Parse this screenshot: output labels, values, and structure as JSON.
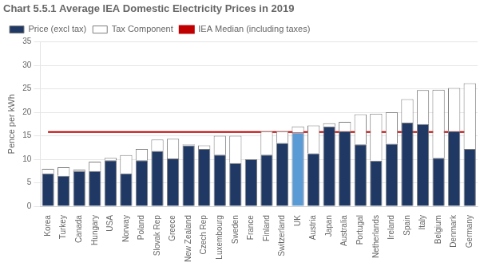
{
  "chart_data": {
    "type": "bar",
    "title": "Chart 5.5.1 Average IEA Domestic Electricity Prices in 2019",
    "ylabel": "Pence per kWh",
    "categories": [
      "Korea",
      "Turkey",
      "Canada",
      "Hungary",
      "USA",
      "Norway",
      "Poland",
      "Slovak Rep",
      "Greece",
      "New Zealand",
      "Czech Rep",
      "Luxembourg",
      "Sweden",
      "France",
      "Finland",
      "Switzerland",
      "UK",
      "Austria",
      "Japan",
      "Australia",
      "Portugal",
      "Netherlands",
      "Ireland",
      "Spain",
      "Italy",
      "Belgium",
      "Denmark",
      "Germany"
    ],
    "series": [
      {
        "name": "Price (excl tax)",
        "type": "bar",
        "colors": [
          "#1f3864",
          "#1f3864",
          "#1f3864",
          "#1f3864",
          "#1f3864",
          "#1f3864",
          "#1f3864",
          "#1f3864",
          "#1f3864",
          "#1f3864",
          "#1f3864",
          "#1f3864",
          "#1f3864",
          "#1f3864",
          "#1f3864",
          "#1f3864",
          "#5b9bd5",
          "#1f3864",
          "#1f3864",
          "#1f3864",
          "#1f3864",
          "#1f3864",
          "#1f3864",
          "#1f3864",
          "#1f3864",
          "#1f3864",
          "#1f3864",
          "#1f3864"
        ],
        "values": [
          7.0,
          6.5,
          7.5,
          7.5,
          9.8,
          7.0,
          9.8,
          11.8,
          10.2,
          13.0,
          12.2,
          11.0,
          9.2,
          10.0,
          11.0,
          13.5,
          15.7,
          11.3,
          17.0,
          16.0,
          13.2,
          9.7,
          13.3,
          17.8,
          17.5,
          10.3,
          16.0,
          12.2
        ]
      },
      {
        "name": "Tax Component",
        "type": "bar",
        "color": "#ffffff",
        "values": [
          1.0,
          1.8,
          0.3,
          2.0,
          0.5,
          3.9,
          2.4,
          2.4,
          4.2,
          0.2,
          0.8,
          4.0,
          5.8,
          0.0,
          5.0,
          2.5,
          1.3,
          5.9,
          0.7,
          2.0,
          6.4,
          10.0,
          6.7,
          5.0,
          7.2,
          14.5,
          9.2,
          14.0
        ]
      },
      {
        "name": "IEA Median (including taxes)",
        "type": "line",
        "color": "#c00000",
        "values": [
          15.8,
          15.8,
          15.8,
          15.8,
          15.8,
          15.8,
          15.8,
          15.8,
          15.8,
          15.8,
          15.8,
          15.8,
          15.8,
          15.8,
          15.8,
          15.8,
          15.8,
          15.8,
          15.8,
          15.8,
          15.8,
          15.8,
          15.8,
          15.8,
          15.8,
          15.8,
          15.8,
          15.8
        ]
      }
    ],
    "stacked": true,
    "ylim": [
      0,
      35
    ],
    "yticks": [
      0,
      5,
      10,
      15,
      20,
      25,
      30,
      35
    ],
    "grid": true,
    "legend": "upper left"
  }
}
